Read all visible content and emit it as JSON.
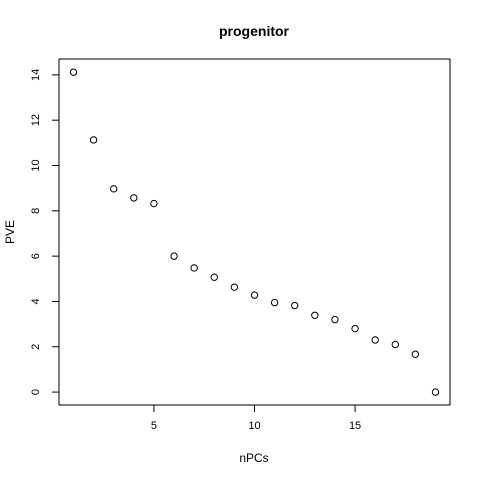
{
  "chart_data": {
    "type": "scatter",
    "title": "progenitor",
    "xlabel": "nPCs",
    "ylabel": "PVE",
    "xlim": [
      0.28,
      19.72
    ],
    "ylim": [
      -0.57,
      14.7
    ],
    "xticks": [
      5,
      10,
      15
    ],
    "yticks": [
      0,
      2,
      4,
      6,
      8,
      10,
      12,
      14
    ],
    "grid": false,
    "legend": "none",
    "marker": "open-circle",
    "series": [
      {
        "x": [
          1,
          2,
          3,
          4,
          5,
          6,
          7,
          8,
          9,
          10,
          11,
          12,
          13,
          14,
          15,
          16,
          17,
          18,
          19
        ],
        "values": [
          14.12,
          11.13,
          8.97,
          8.57,
          8.32,
          6.0,
          5.48,
          5.07,
          4.63,
          4.28,
          3.95,
          3.82,
          3.39,
          3.2,
          2.8,
          2.3,
          2.1,
          1.67,
          0.0
        ]
      }
    ]
  }
}
